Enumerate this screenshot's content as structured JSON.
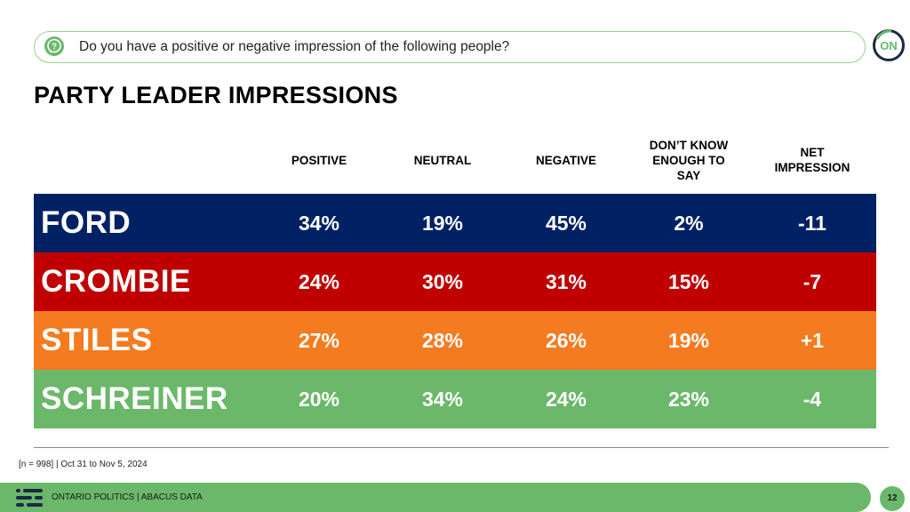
{
  "question": {
    "icon": "question-bubble-icon",
    "text": "Do you have a positive or negative impression of the following people?"
  },
  "logo": {
    "text": "ON",
    "icon": "ontario-logo-icon"
  },
  "title": "PARTY LEADER IMPRESSIONS",
  "chart_data": {
    "type": "table",
    "title": "PARTY LEADER IMPRESSIONS",
    "columns": [
      "POSITIVE",
      "NEUTRAL",
      "NEGATIVE",
      "DON’T KNOW ENOUGH TO SAY",
      "NET IMPRESSION"
    ],
    "column_lines": [
      [
        "POSITIVE"
      ],
      [
        "NEUTRAL"
      ],
      [
        "NEGATIVE"
      ],
      [
        "DON’T KNOW",
        "ENOUGH TO",
        "SAY"
      ],
      [
        "NET",
        "IMPRESSION"
      ]
    ],
    "rows": [
      {
        "name": "FORD",
        "color": "#002163",
        "values": [
          "34%",
          "19%",
          "45%",
          "2%",
          "-11"
        ]
      },
      {
        "name": "CROMBIE",
        "color": "#c00000",
        "values": [
          "24%",
          "30%",
          "31%",
          "15%",
          "-7"
        ]
      },
      {
        "name": "STILES",
        "color": "#f47b20",
        "values": [
          "27%",
          "28%",
          "26%",
          "19%",
          "+1"
        ]
      },
      {
        "name": "SCHREINER",
        "color": "#6bb86a",
        "values": [
          "20%",
          "34%",
          "24%",
          "23%",
          "-4"
        ]
      }
    ]
  },
  "note": "[n = 998] | Oct 31 to Nov 5, 2024",
  "footer": {
    "text": "ONTARIO POLITICS  |  ABACUS DATA",
    "page": "12",
    "logo_icon": "abacus-logo-icon",
    "bar_color": "#6bb86a"
  }
}
